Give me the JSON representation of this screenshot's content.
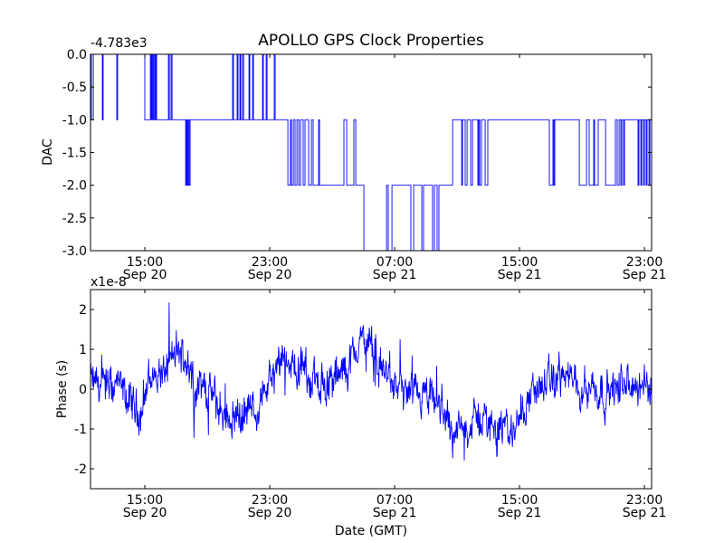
{
  "chart_data": [
    {
      "type": "line",
      "title": "APOLLO GPS Clock Properties",
      "ylabel": "DAC",
      "xlabel": "",
      "y_offset_label": "-4.783e3",
      "ylim": [
        -3.0,
        0.0
      ],
      "yticks": [
        "0.0",
        "-0.5",
        "-1.0",
        "-1.5",
        "-2.0",
        "-2.5",
        "-3.0"
      ],
      "ytick_values": [
        0.0,
        -0.5,
        -1.0,
        -1.5,
        -2.0,
        -2.5,
        -3.0
      ],
      "x_unit": "hours since Sep 20 00:00 GMT",
      "xlim": [
        11.52,
        47.46
      ],
      "xtick_values": [
        15,
        23,
        31,
        39,
        47
      ],
      "xticks": [
        [
          "15:00",
          "Sep 20"
        ],
        [
          "23:00",
          "Sep 20"
        ],
        [
          "07:00",
          "Sep 21"
        ],
        [
          "15:00",
          "Sep 21"
        ],
        [
          "23:00",
          "Sep 21"
        ]
      ],
      "color": "#0000ff",
      "step_points": [
        [
          11.52,
          0
        ],
        [
          11.58,
          -1
        ],
        [
          11.7,
          0
        ],
        [
          12.28,
          -1
        ],
        [
          12.33,
          0
        ],
        [
          13.2,
          -1
        ],
        [
          13.26,
          0
        ],
        [
          15.0,
          -1
        ],
        [
          15.35,
          0
        ],
        [
          15.41,
          -1
        ],
        [
          15.46,
          0
        ],
        [
          15.52,
          -1
        ],
        [
          15.58,
          0
        ],
        [
          15.64,
          -1
        ],
        [
          15.7,
          0
        ],
        [
          15.75,
          -1
        ],
        [
          16.51,
          0
        ],
        [
          16.57,
          -1
        ],
        [
          16.68,
          0
        ],
        [
          16.74,
          -1
        ],
        [
          17.61,
          -2
        ],
        [
          17.67,
          -1
        ],
        [
          17.72,
          -2
        ],
        [
          17.78,
          -1
        ],
        [
          17.84,
          -2
        ],
        [
          17.9,
          -1
        ],
        [
          20.62,
          0
        ],
        [
          20.68,
          -1
        ],
        [
          20.91,
          0
        ],
        [
          20.97,
          -1
        ],
        [
          21.09,
          0
        ],
        [
          21.14,
          -1
        ],
        [
          21.26,
          0
        ],
        [
          21.32,
          -1
        ],
        [
          21.67,
          0
        ],
        [
          21.72,
          -1
        ],
        [
          21.9,
          0
        ],
        [
          21.96,
          -1
        ],
        [
          22.54,
          0
        ],
        [
          22.59,
          -1
        ],
        [
          22.77,
          0
        ],
        [
          22.83,
          -1
        ],
        [
          23.29,
          0
        ],
        [
          23.35,
          -1
        ],
        [
          24.16,
          -2
        ],
        [
          24.33,
          -1
        ],
        [
          24.39,
          -2
        ],
        [
          24.51,
          -1
        ],
        [
          24.62,
          -2
        ],
        [
          24.74,
          -1
        ],
        [
          24.86,
          -2
        ],
        [
          24.97,
          -1
        ],
        [
          25.14,
          -2
        ],
        [
          25.26,
          -1
        ],
        [
          25.49,
          -2
        ],
        [
          25.67,
          -1
        ],
        [
          25.78,
          -2
        ],
        [
          26.13,
          -1
        ],
        [
          26.19,
          -2
        ],
        [
          27.75,
          -1
        ],
        [
          27.93,
          -2
        ],
        [
          28.39,
          -1
        ],
        [
          28.51,
          -2
        ],
        [
          29.03,
          -3.2
        ],
        [
          30.48,
          -2
        ],
        [
          30.59,
          -3.2
        ],
        [
          30.83,
          -2
        ],
        [
          32.04,
          -3.2
        ],
        [
          32.22,
          -2
        ],
        [
          32.74,
          -3.2
        ],
        [
          32.85,
          -2
        ],
        [
          33.43,
          -3.2
        ],
        [
          33.55,
          -2
        ],
        [
          33.72,
          -3.2
        ],
        [
          33.84,
          -2
        ],
        [
          34.71,
          -1
        ],
        [
          35.29,
          -2
        ],
        [
          35.35,
          -1
        ],
        [
          35.52,
          -2
        ],
        [
          35.64,
          -1
        ],
        [
          35.87,
          -2
        ],
        [
          35.99,
          -1
        ],
        [
          36.33,
          -2
        ],
        [
          36.39,
          -1
        ],
        [
          36.45,
          -2
        ],
        [
          36.56,
          -1
        ],
        [
          36.8,
          -2
        ],
        [
          36.97,
          -1
        ],
        [
          40.91,
          -2
        ],
        [
          41.14,
          -1
        ],
        [
          41.2,
          -2
        ],
        [
          41.26,
          -1
        ],
        [
          42.83,
          -2
        ],
        [
          43.29,
          -1
        ],
        [
          43.46,
          -2
        ],
        [
          43.75,
          -1
        ],
        [
          43.81,
          -2
        ],
        [
          44.04,
          -1
        ],
        [
          44.51,
          -2
        ],
        [
          45.14,
          -1
        ],
        [
          45.26,
          -2
        ],
        [
          45.38,
          -1
        ],
        [
          45.49,
          -2
        ],
        [
          45.55,
          -1
        ],
        [
          45.67,
          -2
        ],
        [
          45.72,
          -1
        ],
        [
          46.59,
          -2
        ],
        [
          46.65,
          -1
        ],
        [
          46.77,
          -2
        ],
        [
          46.82,
          -1
        ],
        [
          46.94,
          -2
        ],
        [
          47.0,
          -1
        ],
        [
          47.11,
          -2
        ],
        [
          47.17,
          -1
        ],
        [
          47.29,
          -2
        ],
        [
          47.35,
          -1
        ],
        [
          47.46,
          -1
        ]
      ]
    },
    {
      "type": "line",
      "title": "",
      "ylabel": "Phase (s)",
      "xlabel": "Date (GMT)",
      "y_offset_label": "x1e-8",
      "ylim": [
        -2.5,
        2.5
      ],
      "yticks": [
        "2",
        "1",
        "0",
        "-1",
        "-2"
      ],
      "ytick_values": [
        2,
        1,
        0,
        -1,
        -2
      ],
      "x_unit": "hours since Sep 20 00:00 GMT",
      "xlim": [
        11.52,
        47.46
      ],
      "xtick_values": [
        15,
        23,
        31,
        39,
        47
      ],
      "xticks": [
        [
          "15:00",
          "Sep 20"
        ],
        [
          "23:00",
          "Sep 20"
        ],
        [
          "07:00",
          "Sep 21"
        ],
        [
          "15:00",
          "Sep 21"
        ],
        [
          "23:00",
          "Sep 21"
        ]
      ],
      "color": "#0000ff",
      "trend_points": [
        [
          11.52,
          0.2
        ],
        [
          12.39,
          0.0
        ],
        [
          13.26,
          0.1
        ],
        [
          14.13,
          -0.4
        ],
        [
          14.71,
          -0.6
        ],
        [
          15.29,
          0.3
        ],
        [
          16.16,
          0.4
        ],
        [
          17.03,
          0.9
        ],
        [
          17.61,
          0.8
        ],
        [
          18.19,
          0.1
        ],
        [
          19.06,
          0.0
        ],
        [
          19.93,
          -0.6
        ],
        [
          20.8,
          -0.7
        ],
        [
          21.96,
          -0.5
        ],
        [
          23.12,
          0.2
        ],
        [
          23.99,
          0.7
        ],
        [
          24.86,
          0.5
        ],
        [
          25.72,
          0.3
        ],
        [
          26.59,
          0.1
        ],
        [
          27.46,
          0.3
        ],
        [
          28.33,
          0.8
        ],
        [
          28.91,
          1.3
        ],
        [
          29.49,
          1.0
        ],
        [
          30.36,
          0.4
        ],
        [
          31.23,
          0.0
        ],
        [
          32.1,
          -0.2
        ],
        [
          33.26,
          -0.3
        ],
        [
          34.13,
          -0.5
        ],
        [
          34.71,
          -1.1
        ],
        [
          35.58,
          -1.0
        ],
        [
          36.45,
          -0.7
        ],
        [
          37.32,
          -0.9
        ],
        [
          38.48,
          -1.1
        ],
        [
          39.06,
          -0.6
        ],
        [
          39.93,
          0.0
        ],
        [
          40.8,
          0.1
        ],
        [
          41.67,
          0.4
        ],
        [
          42.54,
          0.1
        ],
        [
          43.41,
          0.1
        ],
        [
          44.56,
          -0.1
        ],
        [
          45.72,
          0.1
        ],
        [
          46.88,
          0.0
        ],
        [
          47.46,
          0.1
        ]
      ],
      "noise_amplitude": 0.45
    }
  ]
}
